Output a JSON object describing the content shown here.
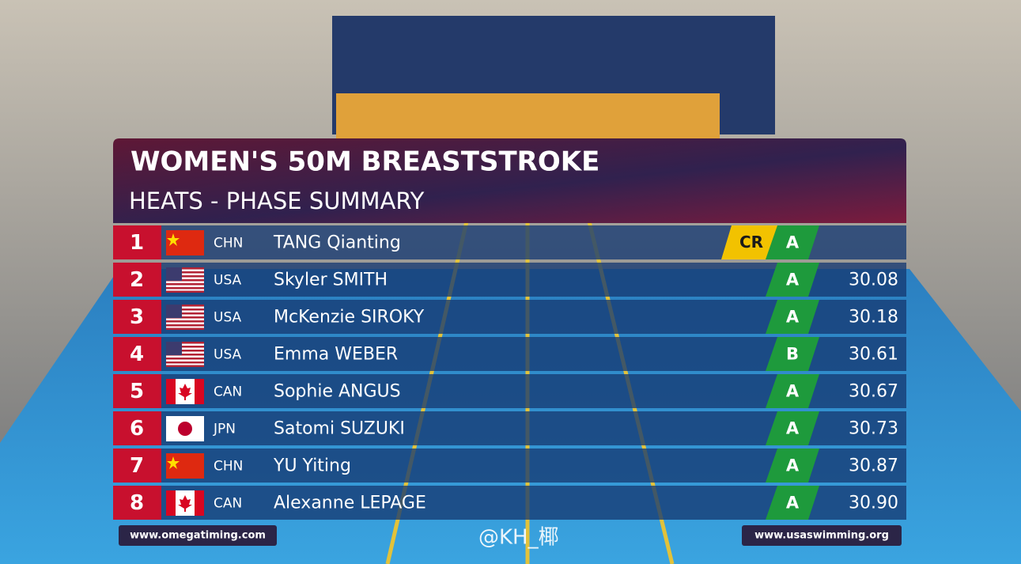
{
  "header": {
    "title": "WOMEN'S 50M BREASTSTROKE",
    "subtitle": "HEATS - PHASE SUMMARY"
  },
  "rows": [
    {
      "rank": 1,
      "country": "CHN",
      "name": "TANG Qianting",
      "record": "CR",
      "qualifier": "A"
    },
    {
      "rank": 2,
      "country": "USA",
      "name": "Skyler SMITH",
      "qualifier": "A",
      "time": "30.08"
    },
    {
      "rank": 3,
      "country": "USA",
      "name": "McKenzie SIROKY",
      "qualifier": "A",
      "time": "30.18"
    },
    {
      "rank": 4,
      "country": "USA",
      "name": "Emma WEBER",
      "qualifier": "B",
      "time": "30.61"
    },
    {
      "rank": 5,
      "country": "CAN",
      "name": "Sophie ANGUS",
      "qualifier": "A",
      "time": "30.67"
    },
    {
      "rank": 6,
      "country": "JPN",
      "name": "Satomi SUZUKI",
      "qualifier": "A",
      "time": "30.73"
    },
    {
      "rank": 7,
      "country": "CHN",
      "name": "YU Yiting",
      "qualifier": "A",
      "time": "30.87"
    },
    {
      "rank": 8,
      "country": "CAN",
      "name": "Alexanne LEPAGE",
      "qualifier": "A",
      "time": "30.90"
    }
  ],
  "footer": {
    "left": "www.omegatiming.com",
    "right": "www.usaswimming.org"
  },
  "watermark": "@KH_椰"
}
